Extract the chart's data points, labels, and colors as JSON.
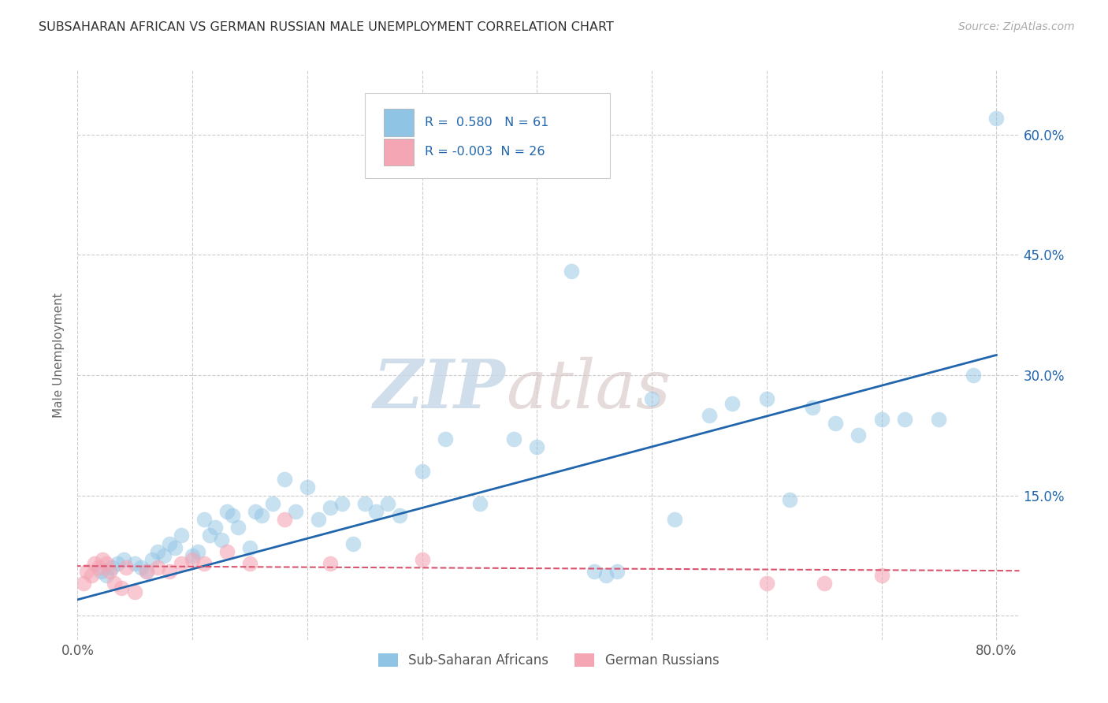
{
  "title": "SUBSAHARAN AFRICAN VS GERMAN RUSSIAN MALE UNEMPLOYMENT CORRELATION CHART",
  "source": "Source: ZipAtlas.com",
  "ylabel": "Male Unemployment",
  "xlim": [
    0.0,
    0.82
  ],
  "ylim": [
    -0.03,
    0.68
  ],
  "xtick_vals": [
    0.0,
    0.1,
    0.2,
    0.3,
    0.4,
    0.5,
    0.6,
    0.7,
    0.8
  ],
  "xtick_labels": [
    "0.0%",
    "",
    "",
    "",
    "",
    "",
    "",
    "",
    "80.0%"
  ],
  "ytick_vals": [
    0.0,
    0.15,
    0.3,
    0.45,
    0.6
  ],
  "ytick_labels": [
    "",
    "15.0%",
    "30.0%",
    "45.0%",
    "60.0%"
  ],
  "grid_color": "#cccccc",
  "bg_color": "#ffffff",
  "blue_color": "#90c4e4",
  "blue_line_color": "#2166ac",
  "pink_color": "#f4a6b5",
  "pink_line_color": "#d9546e",
  "watermark_zip": "ZIP",
  "watermark_atlas": "atlas",
  "legend_R1": "R =  0.580",
  "legend_N1": "N = 61",
  "legend_R2": "R = -0.003",
  "legend_N2": "N = 26",
  "label1": "Sub-Saharan Africans",
  "label2": "German Russians",
  "blue_scatter_x": [
    0.02,
    0.025,
    0.03,
    0.035,
    0.04,
    0.05,
    0.055,
    0.06,
    0.065,
    0.07,
    0.075,
    0.08,
    0.085,
    0.09,
    0.1,
    0.105,
    0.11,
    0.115,
    0.12,
    0.125,
    0.13,
    0.135,
    0.14,
    0.15,
    0.155,
    0.16,
    0.17,
    0.18,
    0.19,
    0.2,
    0.21,
    0.22,
    0.23,
    0.24,
    0.25,
    0.26,
    0.27,
    0.28,
    0.3,
    0.32,
    0.35,
    0.38,
    0.4,
    0.43,
    0.45,
    0.46,
    0.47,
    0.5,
    0.52,
    0.55,
    0.57,
    0.6,
    0.62,
    0.64,
    0.66,
    0.68,
    0.7,
    0.72,
    0.75,
    0.78,
    0.8
  ],
  "blue_scatter_y": [
    0.055,
    0.05,
    0.06,
    0.065,
    0.07,
    0.065,
    0.06,
    0.055,
    0.07,
    0.08,
    0.075,
    0.09,
    0.085,
    0.1,
    0.075,
    0.08,
    0.12,
    0.1,
    0.11,
    0.095,
    0.13,
    0.125,
    0.11,
    0.085,
    0.13,
    0.125,
    0.14,
    0.17,
    0.13,
    0.16,
    0.12,
    0.135,
    0.14,
    0.09,
    0.14,
    0.13,
    0.14,
    0.125,
    0.18,
    0.22,
    0.14,
    0.22,
    0.21,
    0.43,
    0.055,
    0.05,
    0.055,
    0.27,
    0.12,
    0.25,
    0.265,
    0.27,
    0.145,
    0.26,
    0.24,
    0.225,
    0.245,
    0.245,
    0.245,
    0.3,
    0.62
  ],
  "pink_scatter_x": [
    0.005,
    0.008,
    0.012,
    0.015,
    0.018,
    0.022,
    0.025,
    0.028,
    0.032,
    0.038,
    0.042,
    0.05,
    0.06,
    0.07,
    0.08,
    0.09,
    0.1,
    0.11,
    0.13,
    0.15,
    0.18,
    0.22,
    0.3,
    0.6,
    0.65,
    0.7
  ],
  "pink_scatter_y": [
    0.04,
    0.055,
    0.05,
    0.065,
    0.06,
    0.07,
    0.065,
    0.055,
    0.04,
    0.035,
    0.06,
    0.03,
    0.055,
    0.06,
    0.055,
    0.065,
    0.07,
    0.065,
    0.08,
    0.065,
    0.12,
    0.065,
    0.07,
    0.04,
    0.04,
    0.05
  ],
  "blue_line_x": [
    0.0,
    0.8
  ],
  "blue_line_y": [
    0.02,
    0.325
  ],
  "pink_line_x": [
    -0.01,
    0.82
  ],
  "pink_line_y": [
    0.062,
    0.056
  ]
}
